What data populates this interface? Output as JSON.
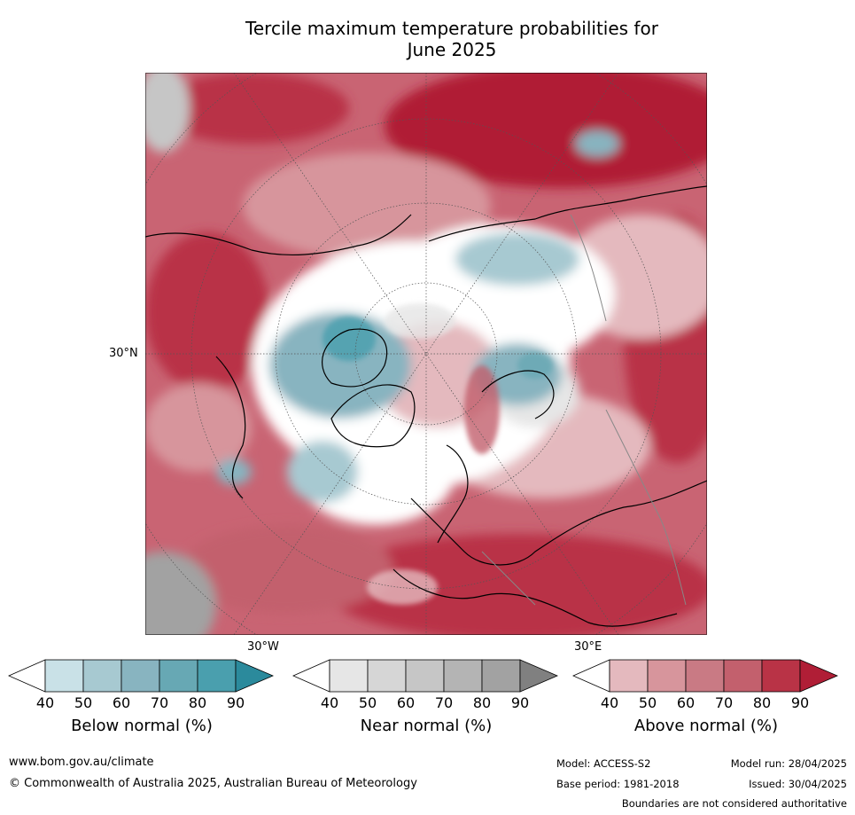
{
  "title_line1": "Tercile maximum temperature probabilities for",
  "title_line2": "June 2025",
  "map_labels": {
    "lat_30n": "30°N",
    "lon_30w": "30°W",
    "lon_30e": "30°E"
  },
  "colorbars": [
    {
      "label": "Below normal (%)",
      "ticks": [
        "40",
        "50",
        "60",
        "70",
        "80",
        "90"
      ],
      "colors": [
        "#ffffff",
        "#c9e1e7",
        "#a7c9d1",
        "#88b4c0",
        "#67a8b4",
        "#4a9fae",
        "#2b8a9c"
      ]
    },
    {
      "label": "Near normal (%)",
      "ticks": [
        "40",
        "50",
        "60",
        "70",
        "80",
        "90"
      ],
      "colors": [
        "#ffffff",
        "#e6e6e6",
        "#d6d6d6",
        "#c6c6c6",
        "#b4b4b4",
        "#a2a2a2",
        "#808080"
      ]
    },
    {
      "label": "Above normal (%)",
      "ticks": [
        "40",
        "50",
        "60",
        "70",
        "80",
        "90"
      ],
      "colors": [
        "#ffffff",
        "#e4b9be",
        "#d7959c",
        "#c97a84",
        "#c3606d",
        "#b93346",
        "#b01e36"
      ]
    }
  ],
  "footer": {
    "website": "www.bom.gov.au/climate",
    "copyright": "© Commonwealth of Australia 2025, Australian Bureau of Meteorology",
    "model": "Model: ACCESS-S2",
    "base_period": "Base period: 1981-2018",
    "model_run": "Model run: 28/04/2025",
    "issued": "Issued: 30/04/2025",
    "disclaimer": "Boundaries are not considered authoritative"
  }
}
